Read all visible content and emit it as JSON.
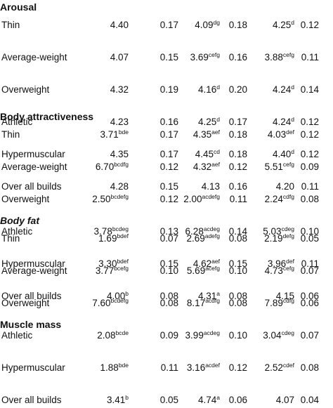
{
  "sections": [
    {
      "title": "Arousal",
      "italic": false,
      "rows": [
        {
          "label": "Thin",
          "v1": "4.40",
          "s1": "",
          "e1": "0.17",
          "v2": "4.09",
          "s2": "dg",
          "e2": "0.18",
          "v3": "4.25",
          "s3": "d",
          "e3": "0.12"
        },
        {
          "label": "Average-weight",
          "v1": "4.07",
          "s1": "",
          "e1": "0.15",
          "v2": "3.69",
          "s2": "cefg",
          "e2": "0.16",
          "v3": "3.88",
          "s3": "cefg",
          "e3": "0.11"
        },
        {
          "label": "Overweight",
          "v1": "4.32",
          "s1": "",
          "e1": "0.19",
          "v2": "4.16",
          "s2": "d",
          "e2": "0.20",
          "v3": "4.24",
          "s3": "d",
          "e3": "0.14"
        },
        {
          "label": "Athletic",
          "v1": "4.23",
          "s1": "",
          "e1": "0.16",
          "v2": "4.25",
          "s2": "d",
          "e2": "0.17",
          "v3": "4.24",
          "s3": "d",
          "e3": "0.12"
        },
        {
          "label": "Hypermuscular",
          "v1": "4.35",
          "s1": "",
          "e1": "0.17",
          "v2": "4.45",
          "s2": "cd",
          "e2": "0.18",
          "v3": "4.40",
          "s3": "d",
          "e3": "0.12"
        },
        {
          "label": "Over all builds",
          "v1": "4.28",
          "s1": "",
          "e1": "0.15",
          "v2": "4.13",
          "s2": "",
          "e2": "0.16",
          "v3": "4.20",
          "s3": "",
          "e3": "0.11"
        }
      ]
    },
    {
      "title": "Body attractiveness",
      "italic": false,
      "rows": [
        {
          "label": "Thin",
          "v1": "3.71",
          "s1": "bde",
          "e1": "0.17",
          "v2": "4.35",
          "s2": "aef",
          "e2": "0.18",
          "v3": "4.03",
          "s3": "def",
          "e3": "0.12"
        },
        {
          "label": "Average-weight",
          "v1": "6.70",
          "s1": "bcdfg",
          "e1": "0.12",
          "v2": "4.32",
          "s2": "aef",
          "e2": "0.12",
          "v3": "5.51",
          "s3": "cefg",
          "e3": "0.09"
        },
        {
          "label": "Overweight",
          "v1": "2.50",
          "s1": "bcdefg",
          "e1": "0.12",
          "v2": "2.00",
          "s2": "acdefg",
          "e2": "0.11",
          "v3": "2.24",
          "s3": "cdfg",
          "e3": "0.08"
        },
        {
          "label": "Athletic",
          "v1": "3.78",
          "s1": "bcdeg",
          "e1": "0.13",
          "v2": "6.28",
          "s2": "acdeg",
          "e2": "0.14",
          "v3": "5.03",
          "s3": "cdeg",
          "e3": "0.10"
        },
        {
          "label": "Hypermuscular",
          "v1": "3.30",
          "s1": "bdef",
          "e1": "0.15",
          "v2": "4.62",
          "s2": "aef",
          "e2": "0.15",
          "v3": "3.96",
          "s3": "def",
          "e3": "0.11"
        },
        {
          "label": "Over all builds",
          "v1": "4.00",
          "s1": "b",
          "e1": "0.08",
          "v2": "4.31",
          "s2": "a",
          "e2": "0.08",
          "v3": "4.15",
          "s3": "",
          "e3": "0.06"
        }
      ]
    },
    {
      "title": "Body fat",
      "italic": true,
      "rows": [
        {
          "label": "Thin",
          "v1": "1.69",
          "s1": "bdef",
          "e1": "0.07",
          "v2": "2.69",
          "s2": "adefg",
          "e2": "0.08",
          "v3": "2.19",
          "s3": "defg",
          "e3": "0.05"
        },
        {
          "label": "Average-weight",
          "v1": "3.77",
          "s1": "bcefg",
          "e1": "0.10",
          "v2": "5.69",
          "s2": "acefg",
          "e2": "0.10",
          "v3": "4.73",
          "s3": "cefg",
          "e3": "0.07"
        },
        {
          "label": "Overweight",
          "v1": "7.60",
          "s1": "bcdefg",
          "e1": "0.08",
          "v2": "8.17",
          "s2": "acdfg",
          "e2": "0.08",
          "v3": "7.89",
          "s3": "cdfg",
          "e3": "0.06"
        },
        {
          "label": "Athletic",
          "v1": "2.08",
          "s1": "bcde",
          "e1": "0.09",
          "v2": "3.99",
          "s2": "acdeg",
          "e2": "0.10",
          "v3": "3.04",
          "s3": "cdeg",
          "e3": "0.07"
        },
        {
          "label": "Hypermuscular",
          "v1": "1.88",
          "s1": "bde",
          "e1": "0.11",
          "v2": "3.16",
          "s2": "acdef",
          "e2": "0.12",
          "v3": "2.52",
          "s3": "cdef",
          "e3": "0.08"
        },
        {
          "label": "Over all builds",
          "v1": "3.41",
          "s1": "b",
          "e1": "0.05",
          "v2": "4.74",
          "s2": "a",
          "e2": "0.06",
          "v3": "4.07",
          "s3": "",
          "e3": "0.04"
        }
      ]
    },
    {
      "title": "Muscle mass",
      "italic": false,
      "rows": []
    }
  ]
}
